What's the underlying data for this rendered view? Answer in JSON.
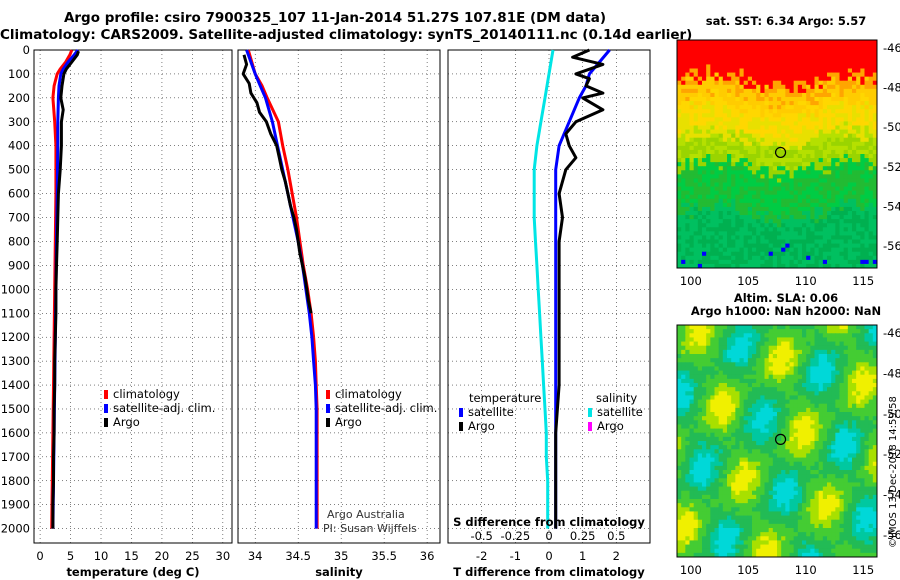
{
  "titles": {
    "line1": "Argo profile: csiro 7900325_107 11-Jan-2014 51.27S 107.81E (DM data)",
    "line2": "Climatology: CARS2009. Satellite-adjusted climatology: synTS_20140111.nc (0.14d earlier)"
  },
  "signature": {
    "line1": "Argo Australia",
    "line2": "PI: Susan Wijffels"
  },
  "stamp": "©IMOS 13-Dec-2018 14:59:58",
  "colors": {
    "climatology": "#ff0000",
    "satellite": "#0000ff",
    "argo": "#000000",
    "sat_salinity": "#00e5e5",
    "argo_salinity": "#ff00ff"
  },
  "chart_data": [
    {
      "type": "line",
      "xlabel": "temperature (deg C)",
      "ylabel": "",
      "xlim": [
        -1,
        31.5
      ],
      "ylim": [
        2060,
        0
      ],
      "xticks": [
        "0",
        "5",
        "10",
        "15",
        "20",
        "25",
        "30"
      ],
      "yticks": [
        "0",
        "100",
        "200",
        "300",
        "400",
        "500",
        "600",
        "700",
        "800",
        "900",
        "1000",
        "1100",
        "1200",
        "1300",
        "1400",
        "1500",
        "1600",
        "1700",
        "1800",
        "1900",
        "2000"
      ],
      "legend": [
        "climatology",
        "satellite-adj. clim.",
        "Argo"
      ],
      "series": [
        {
          "name": "climatology",
          "depth": [
            0,
            20,
            50,
            80,
            100,
            150,
            200,
            300,
            400,
            600,
            800,
            1000,
            1200,
            1400,
            1600,
            1800,
            2000
          ],
          "values": [
            5.2,
            4.9,
            4.2,
            3.3,
            2.8,
            2.3,
            2.1,
            2.4,
            2.6,
            2.6,
            2.5,
            2.4,
            2.3,
            2.2,
            2.1,
            2.0,
            1.9
          ]
        },
        {
          "name": "satellite-adj. clim.",
          "depth": [
            0,
            20,
            50,
            80,
            100,
            150,
            200,
            300,
            400,
            600,
            800,
            1000,
            1200,
            1400,
            1600,
            1800,
            2000
          ],
          "values": [
            6.2,
            5.6,
            4.6,
            3.8,
            3.4,
            3.1,
            3.0,
            2.9,
            2.9,
            2.8,
            2.7,
            2.6,
            2.5,
            2.4,
            2.3,
            2.2,
            2.1
          ]
        },
        {
          "name": "Argo",
          "depth": [
            5,
            20,
            50,
            80,
            100,
            150,
            200,
            250,
            300,
            400,
            500,
            600,
            700,
            800,
            900,
            1000,
            1100,
            1200,
            1300,
            1400,
            1500,
            1600,
            1700,
            1800,
            1900,
            2000
          ],
          "values": [
            6.3,
            6.1,
            5.2,
            4.3,
            3.9,
            3.6,
            3.4,
            3.8,
            3.5,
            3.5,
            3.3,
            3.0,
            2.9,
            2.8,
            2.7,
            2.6,
            2.6,
            2.5,
            2.4,
            2.4,
            2.3,
            2.3,
            2.2,
            2.2,
            2.1,
            2.1
          ]
        }
      ]
    },
    {
      "type": "line",
      "xlabel": "salinity",
      "xlim": [
        33.8,
        36.15
      ],
      "ylim": [
        2060,
        0
      ],
      "xticks": [
        "34",
        "34.5",
        "35",
        "35.5",
        "36"
      ],
      "legend": [
        "climatology",
        "satellite-adj. clim.",
        "Argo"
      ],
      "series": [
        {
          "name": "climatology",
          "depth": [
            0,
            50,
            100,
            150,
            200,
            300,
            400,
            500,
            600,
            700,
            800,
            900,
            1000,
            1100,
            1200,
            1300,
            1400,
            1500,
            1600,
            1800,
            2000
          ],
          "values": [
            33.92,
            33.96,
            34.0,
            34.08,
            34.14,
            34.27,
            34.32,
            34.38,
            34.43,
            34.48,
            34.52,
            34.56,
            34.61,
            34.65,
            34.68,
            34.7,
            34.71,
            34.72,
            34.72,
            34.72,
            34.72
          ]
        },
        {
          "name": "satellite-adj. clim.",
          "depth": [
            0,
            50,
            100,
            150,
            200,
            300,
            400,
            500,
            600,
            700,
            800,
            900,
            1000,
            1100,
            1200,
            1300,
            1400,
            1500,
            1600,
            1800,
            2000
          ],
          "values": [
            33.9,
            33.95,
            34.0,
            34.06,
            34.12,
            34.2,
            34.26,
            34.32,
            34.38,
            34.44,
            34.5,
            34.55,
            34.59,
            34.63,
            34.66,
            34.68,
            34.7,
            34.71,
            34.71,
            34.71,
            34.71
          ]
        },
        {
          "name": "Argo",
          "depth": [
            20,
            60,
            100,
            140,
            180,
            220,
            260,
            300,
            350,
            400,
            450,
            500,
            550,
            600,
            650,
            700,
            750,
            800,
            850,
            900,
            950,
            1000,
            1050,
            1100
          ],
          "values": [
            33.87,
            33.9,
            33.86,
            33.93,
            33.95,
            34.02,
            34.05,
            34.13,
            34.18,
            34.25,
            34.28,
            34.31,
            34.35,
            34.38,
            34.41,
            34.45,
            34.48,
            34.5,
            34.52,
            34.55,
            34.58,
            34.6,
            34.62,
            34.65
          ]
        }
      ]
    },
    {
      "type": "line",
      "xlabel": "T difference from climatology",
      "title": "S difference from climatology",
      "xlim": [
        -3,
        3
      ],
      "ylim": [
        2060,
        0
      ],
      "xticks": [
        "-2",
        "-1",
        "0",
        "1",
        "2"
      ],
      "top_ticks": [
        "-0.5",
        "-0.25",
        "0",
        "0.25",
        "0.5"
      ],
      "legend": {
        "temperature": [
          "satellite",
          "Argo"
        ],
        "salinity": [
          "satellite",
          "Argo"
        ]
      },
      "legend_headers": [
        "temperature",
        "salinity"
      ],
      "series": [
        {
          "name": "satellite",
          "depth": [
            0,
            50,
            100,
            150,
            200,
            300,
            400,
            500,
            600,
            800,
            1000,
            1200,
            1400,
            1600,
            1800,
            2000
          ],
          "values": [
            1.8,
            1.5,
            1.2,
            1.1,
            0.9,
            0.6,
            0.3,
            0.2,
            0.2,
            0.2,
            0.2,
            0.2,
            0.2,
            0.2,
            0.2,
            0.2
          ]
        },
        {
          "name": "Argo",
          "depth": [
            0,
            30,
            60,
            100,
            120,
            150,
            180,
            200,
            250,
            300,
            350,
            400,
            450,
            500,
            600,
            700,
            800,
            1000,
            1200,
            1400,
            1600,
            1800,
            2000
          ],
          "values": [
            1.2,
            0.7,
            1.6,
            0.8,
            1.2,
            1.1,
            1.6,
            1.0,
            1.6,
            0.8,
            0.5,
            0.6,
            0.8,
            0.5,
            0.3,
            0.4,
            0.3,
            0.3,
            0.3,
            0.3,
            0.2,
            0.2,
            0.2
          ]
        },
        {
          "name": "satellite (salinity)",
          "depth": [
            0,
            100,
            200,
            300,
            400,
            500,
            600,
            700,
            800,
            900,
            1000,
            1100,
            1200,
            1300,
            1400,
            1500,
            1600,
            1700,
            1800,
            1900,
            2000
          ],
          "values": [
            0.03,
            0.0,
            -0.03,
            -0.06,
            -0.09,
            -0.11,
            -0.11,
            -0.11,
            -0.1,
            -0.09,
            -0.08,
            -0.07,
            -0.06,
            -0.05,
            -0.04,
            -0.03,
            -0.02,
            -0.02,
            -0.01,
            -0.01,
            -0.01
          ]
        }
      ]
    },
    {
      "type": "heatmap",
      "title": "sat. SST: 6.34 Argo: 5.57",
      "xticks": [
        "100",
        "105",
        "110",
        "115"
      ],
      "yticks": [
        "-46",
        "-48",
        "-50",
        "-52",
        "-54",
        "-56"
      ],
      "argo_position": {
        "lon": 107.81,
        "lat": -51.27
      }
    },
    {
      "type": "heatmap",
      "title": "Altim. SLA: 0.06",
      "subtitle": "Argo h1000: NaN h2000: NaN",
      "xticks": [
        "100",
        "105",
        "110",
        "115"
      ],
      "yticks": [
        "-46",
        "-48",
        "-50",
        "-52",
        "-54",
        "-56"
      ],
      "argo_position": {
        "lon": 107.81,
        "lat": -51.27
      }
    }
  ]
}
